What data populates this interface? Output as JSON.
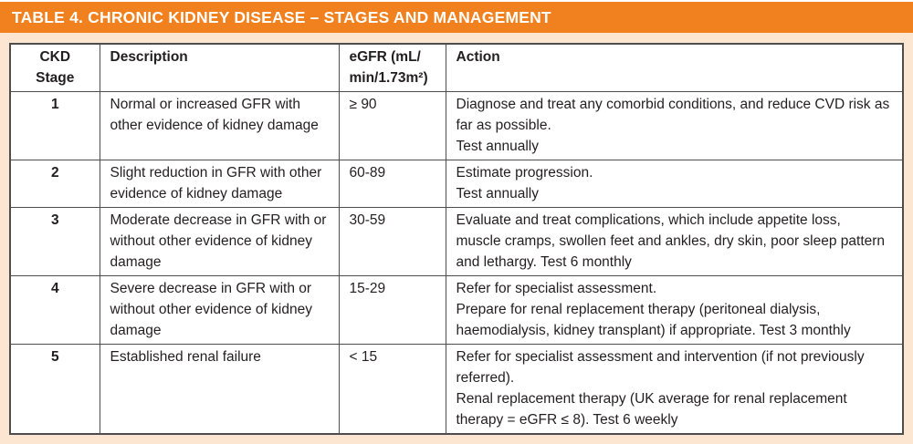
{
  "title": "TABLE 4. CHRONIC KIDNEY DISEASE – STAGES AND MANAGEMENT",
  "colors": {
    "title_bar_orange": "#F0811E",
    "page_background_peach": "#FCE5D1",
    "table_border_gray": "#4D4D4D",
    "cell_background": "#FFFFFF",
    "title_text": "#FFFFFF",
    "body_text": "#231F20"
  },
  "table": {
    "columns": [
      {
        "key": "stage",
        "label": "CKD\nStage"
      },
      {
        "key": "description",
        "label": "Description"
      },
      {
        "key": "egfr",
        "label": "eGFR (mL/\nmin/1.73m²)"
      },
      {
        "key": "action",
        "label": "Action"
      }
    ],
    "rows": [
      {
        "stage": "1",
        "description": "Normal or increased GFR with\nother evidence of kidney damage",
        "egfr": "≥ 90",
        "action": "Diagnose and treat any comorbid conditions, and reduce CVD risk as\nfar as possible.\nTest annually"
      },
      {
        "stage": "2",
        "description": "Slight reduction in GFR with other\nevidence of kidney damage",
        "egfr": "60-89",
        "action": "Estimate progression.\nTest annually"
      },
      {
        "stage": "3",
        "description": "Moderate decrease in GFR with or\nwithout other evidence of kidney\ndamage",
        "egfr": "30-59",
        "action": "Evaluate and treat complications, which include appetite loss,\nmuscle cramps, swollen feet and ankles, dry skin, poor sleep pattern\nand lethargy. Test 6 monthly"
      },
      {
        "stage": "4",
        "description": "Severe decrease in GFR with or\nwithout other evidence of kidney\ndamage",
        "egfr": "15-29",
        "action": "Refer for specialist assessment.\nPrepare for renal replacement therapy (peritoneal dialysis,\nhaemodialysis, kidney transplant) if appropriate. Test 3 monthly"
      },
      {
        "stage": "5",
        "description": "Established renal failure",
        "egfr": "< 15",
        "action": "Refer for specialist assessment and intervention (if not previously\nreferred).\nRenal replacement therapy  (UK average for renal replacement\ntherapy = eGFR ≤ 8). Test 6 weekly"
      }
    ]
  }
}
